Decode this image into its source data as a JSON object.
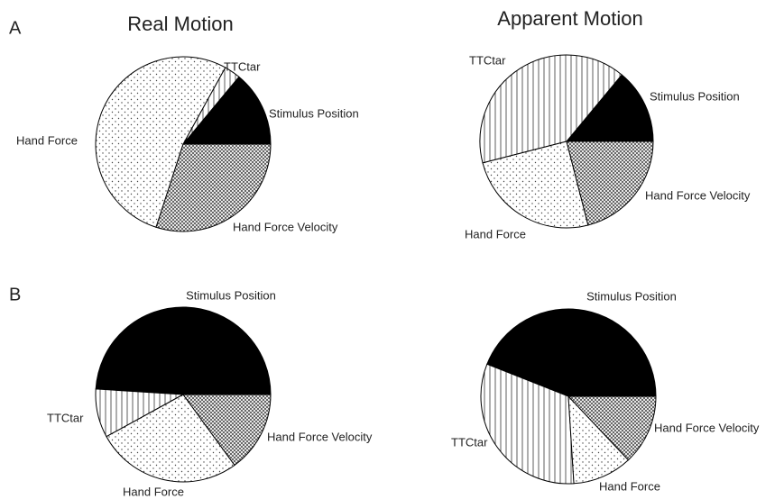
{
  "panel_labels": [
    "A",
    "B"
  ],
  "chart_data": [
    {
      "type": "pie",
      "title": "Real Motion",
      "categories": [
        "Stimulus Position",
        "TTCtar",
        "Hand Force",
        "Hand Force Velocity"
      ],
      "values": [
        14,
        3,
        53,
        30
      ],
      "patterns": [
        "solid",
        "vertical-lines",
        "dots",
        "crosshatch"
      ]
    },
    {
      "type": "pie",
      "title": "Apparent Motion",
      "categories": [
        "Stimulus Position",
        "TTCtar",
        "Hand Force",
        "Hand Force Velocity"
      ],
      "values": [
        14,
        40,
        25,
        21
      ],
      "patterns": [
        "solid",
        "vertical-lines",
        "dots",
        "crosshatch"
      ]
    },
    {
      "type": "pie",
      "categories": [
        "Stimulus Position",
        "TTCtar",
        "Hand Force",
        "Hand Force Velocity"
      ],
      "values": [
        49,
        9,
        27,
        15
      ],
      "patterns": [
        "solid",
        "vertical-lines",
        "dots",
        "crosshatch"
      ]
    },
    {
      "type": "pie",
      "categories": [
        "Stimulus Position",
        "TTCtar",
        "Hand Force",
        "Hand Force Velocity"
      ],
      "values": [
        44,
        32,
        11,
        13
      ],
      "patterns": [
        "solid",
        "vertical-lines",
        "dots",
        "crosshatch"
      ]
    }
  ]
}
